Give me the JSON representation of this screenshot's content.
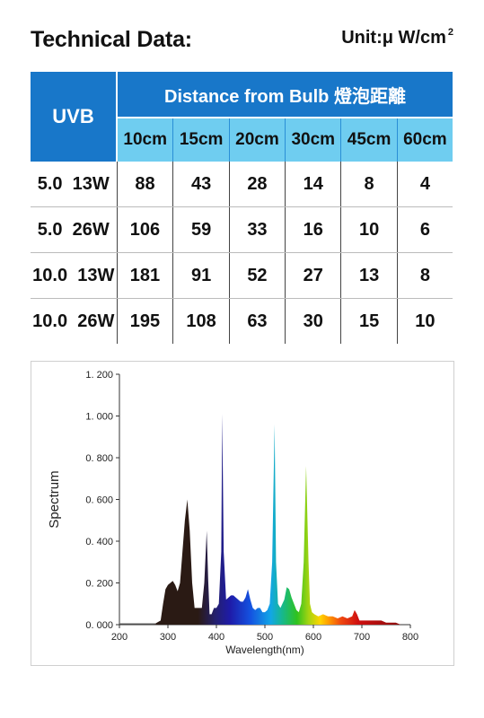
{
  "header": {
    "title": "Technical Data:",
    "unit_label": "Unit:μ W/cm",
    "unit_sup": "2"
  },
  "table": {
    "corner_label": "UVB",
    "group_label": "Distance from Bulb 燈泡距離",
    "distances": [
      "10cm",
      "15cm",
      "20cm",
      "30cm",
      "45cm",
      "60cm"
    ],
    "rows": [
      {
        "uvb": "5.0",
        "watt": "13W",
        "values": [
          "88",
          "43",
          "28",
          "14",
          "8",
          "4"
        ]
      },
      {
        "uvb": "5.0",
        "watt": "26W",
        "values": [
          "106",
          "59",
          "33",
          "16",
          "10",
          "6"
        ]
      },
      {
        "uvb": "10.0",
        "watt": "13W",
        "values": [
          "181",
          "91",
          "52",
          "27",
          "13",
          "8"
        ]
      },
      {
        "uvb": "10.0",
        "watt": "26W",
        "values": [
          "195",
          "108",
          "63",
          "30",
          "15",
          "10"
        ]
      }
    ]
  },
  "colors": {
    "header_blue": "#1877c9",
    "header_light_blue": "#6fcdf0"
  },
  "chart_data": {
    "type": "area",
    "title": "",
    "xlabel": "Wavelength(nm)",
    "ylabel": "Spectrum",
    "xlim": [
      200,
      800
    ],
    "ylim": [
      0,
      1.2
    ],
    "xticks": [
      "200",
      "300",
      "400",
      "500",
      "600",
      "700",
      "800"
    ],
    "yticks": [
      "0. 000",
      "0. 200",
      "0. 400",
      "0. 600",
      "0. 800",
      "1. 000",
      "1. 200"
    ],
    "grid": false,
    "legend": "none",
    "fill": "visible-spectrum gradient",
    "x": [
      200,
      270,
      285,
      290,
      295,
      300,
      305,
      310,
      315,
      320,
      325,
      330,
      335,
      340,
      345,
      350,
      355,
      360,
      365,
      370,
      375,
      380,
      383,
      386,
      390,
      395,
      400,
      405,
      410,
      412,
      415,
      420,
      425,
      430,
      435,
      440,
      445,
      450,
      455,
      460,
      465,
      470,
      475,
      480,
      485,
      490,
      495,
      500,
      505,
      510,
      515,
      520,
      523,
      527,
      532,
      540,
      545,
      550,
      555,
      560,
      565,
      570,
      575,
      580,
      585,
      590,
      593,
      597,
      602,
      610,
      620,
      630,
      640,
      650,
      660,
      670,
      680,
      685,
      690,
      695,
      700,
      710,
      720,
      730,
      740,
      750,
      760,
      770,
      780
    ],
    "y": [
      0.0,
      0.0,
      0.02,
      0.1,
      0.17,
      0.19,
      0.2,
      0.21,
      0.19,
      0.16,
      0.2,
      0.35,
      0.5,
      0.6,
      0.45,
      0.2,
      0.08,
      0.08,
      0.08,
      0.08,
      0.2,
      0.45,
      0.22,
      0.05,
      0.05,
      0.08,
      0.08,
      0.1,
      0.35,
      1.01,
      0.35,
      0.12,
      0.13,
      0.14,
      0.14,
      0.13,
      0.12,
      0.11,
      0.11,
      0.13,
      0.17,
      0.12,
      0.08,
      0.07,
      0.08,
      0.08,
      0.06,
      0.06,
      0.07,
      0.1,
      0.3,
      0.96,
      0.3,
      0.1,
      0.08,
      0.12,
      0.18,
      0.17,
      0.13,
      0.1,
      0.07,
      0.06,
      0.1,
      0.3,
      0.76,
      0.3,
      0.1,
      0.06,
      0.05,
      0.04,
      0.05,
      0.04,
      0.04,
      0.03,
      0.04,
      0.03,
      0.04,
      0.07,
      0.05,
      0.02,
      0.02,
      0.02,
      0.02,
      0.02,
      0.02,
      0.01,
      0.01,
      0.01,
      0.0
    ]
  }
}
